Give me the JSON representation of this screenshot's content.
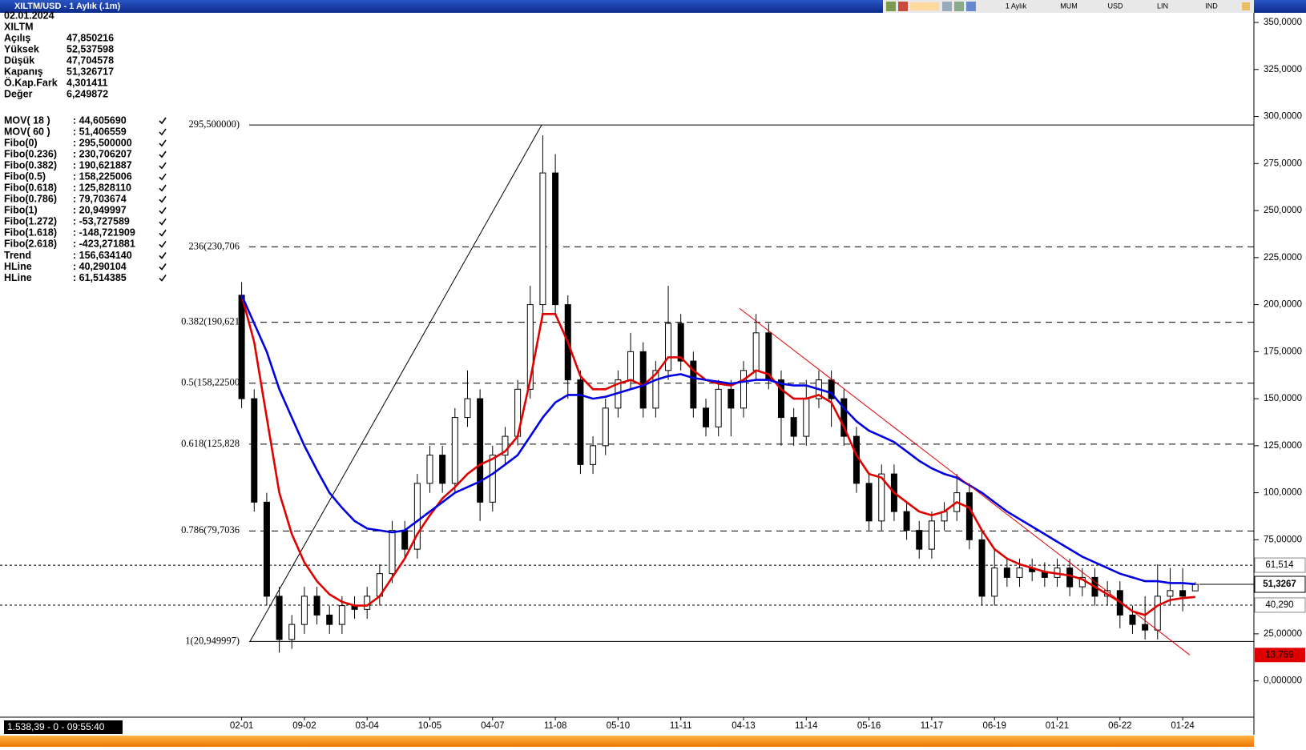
{
  "window": {
    "title": "XILTM/USD - 1 Aylık (.1m)",
    "toolbar": [
      "1 Aylık",
      "MUM",
      "USD",
      "LIN",
      "IND"
    ],
    "status": "1.538,39 - 0 - 09:55:40"
  },
  "info": {
    "date": "02.01.2024",
    "symbol": "XILTM",
    "rows": [
      [
        "Açılış",
        "47,850216"
      ],
      [
        "Yüksek",
        "52,537598"
      ],
      [
        "Düşük",
        "47,704578"
      ],
      [
        "Kapanış",
        "51,326717"
      ],
      [
        "Ö.Kap.Fark",
        "4,301411"
      ],
      [
        "Değer",
        "6,249872"
      ]
    ]
  },
  "chart_data": {
    "type": "candlestick",
    "categories": [
      "02-01",
      null,
      null,
      null,
      null,
      "09-02",
      null,
      null,
      null,
      null,
      "03-04",
      null,
      null,
      null,
      null,
      "10-05",
      null,
      null,
      null,
      null,
      "04-07",
      null,
      null,
      null,
      null,
      "11-08",
      null,
      null,
      null,
      null,
      "05-10",
      null,
      null,
      null,
      null,
      "11-11",
      null,
      null,
      null,
      null,
      "04-13",
      null,
      null,
      null,
      null,
      "11-14",
      null,
      null,
      null,
      null,
      "05-16",
      null,
      null,
      null,
      null,
      "11-17",
      null,
      null,
      null,
      null,
      "06-19",
      null,
      null,
      null,
      null,
      "01-21",
      null,
      null,
      null,
      null,
      "06-22",
      null,
      null,
      null,
      null,
      "01-24",
      null
    ],
    "open": [
      205,
      150,
      95,
      45,
      22,
      30,
      45,
      35,
      30,
      40,
      38,
      45,
      57,
      80,
      70,
      105,
      120,
      105,
      140,
      150,
      95,
      120,
      130,
      155,
      200,
      270,
      200,
      160,
      115,
      125,
      145,
      160,
      175,
      145,
      165,
      190,
      170,
      145,
      135,
      155,
      145,
      165,
      185,
      160,
      140,
      130,
      150,
      160,
      150,
      130,
      105,
      85,
      110,
      90,
      80,
      70,
      85,
      90,
      100,
      75,
      45,
      60,
      55,
      60,
      58,
      55,
      60,
      50,
      55,
      45,
      48,
      35,
      30,
      27,
      45,
      48,
      47.850216
    ],
    "high": [
      212,
      155,
      100,
      50,
      35,
      50,
      50,
      40,
      45,
      45,
      50,
      62,
      85,
      85,
      110,
      125,
      125,
      145,
      165,
      155,
      125,
      135,
      160,
      210,
      290,
      280,
      205,
      165,
      130,
      150,
      165,
      185,
      180,
      170,
      210,
      195,
      175,
      150,
      160,
      160,
      170,
      195,
      190,
      165,
      145,
      160,
      165,
      165,
      155,
      135,
      110,
      115,
      115,
      95,
      85,
      90,
      95,
      110,
      105,
      80,
      70,
      65,
      65,
      65,
      63,
      65,
      65,
      60,
      60,
      53,
      53,
      40,
      45,
      62,
      60,
      60,
      52.537598
    ],
    "low": [
      145,
      90,
      40,
      15,
      17,
      25,
      30,
      25,
      25,
      33,
      33,
      40,
      52,
      65,
      65,
      100,
      100,
      100,
      135,
      85,
      90,
      115,
      125,
      150,
      195,
      195,
      150,
      110,
      110,
      120,
      140,
      155,
      140,
      140,
      160,
      165,
      140,
      130,
      130,
      130,
      140,
      160,
      155,
      125,
      125,
      125,
      145,
      135,
      125,
      100,
      80,
      80,
      85,
      75,
      65,
      65,
      80,
      85,
      70,
      40,
      40,
      50,
      50,
      53,
      50,
      50,
      45,
      45,
      40,
      40,
      28,
      25,
      22,
      22,
      40,
      37,
      47.704578
    ],
    "close": [
      150,
      95,
      45,
      22,
      30,
      45,
      35,
      30,
      40,
      38,
      45,
      57,
      80,
      70,
      105,
      120,
      105,
      140,
      150,
      95,
      120,
      130,
      155,
      200,
      270,
      200,
      160,
      115,
      125,
      145,
      160,
      175,
      145,
      165,
      190,
      170,
      145,
      135,
      155,
      145,
      165,
      185,
      160,
      140,
      130,
      150,
      160,
      150,
      130,
      105,
      85,
      110,
      90,
      80,
      70,
      85,
      90,
      100,
      75,
      45,
      60,
      55,
      60,
      58,
      55,
      60,
      50,
      55,
      45,
      48,
      35,
      30,
      27,
      45,
      48,
      45,
      51.326717
    ],
    "last_label": "51,3267",
    "series": [
      {
        "name": "MOV( 18 )",
        "legend_value": ": 44,605690",
        "color": "#e00000",
        "values": [
          205,
          180,
          140,
          100,
          78,
          63,
          53,
          46,
          42,
          40,
          40,
          45,
          55,
          65,
          78,
          88,
          97,
          103,
          110,
          115,
          118,
          122,
          130,
          160,
          195,
          195,
          180,
          162,
          155,
          155,
          158,
          160,
          157,
          163,
          172,
          172,
          165,
          160,
          158,
          157,
          160,
          165,
          163,
          155,
          150,
          150,
          152,
          148,
          135,
          120,
          110,
          108,
          100,
          95,
          90,
          88,
          90,
          95,
          92,
          80,
          70,
          65,
          62,
          60,
          58,
          57,
          56,
          54,
          50,
          46,
          42,
          37,
          35,
          40,
          43,
          44,
          44.6
        ]
      },
      {
        "name": "MOV( 60 )",
        "legend_value": ": 51,406559",
        "color": "#0000e0",
        "values": [
          205,
          190,
          175,
          155,
          140,
          125,
          112,
          100,
          92,
          85,
          81,
          80,
          79,
          80,
          85,
          90,
          95,
          100,
          103,
          106,
          110,
          115,
          120,
          130,
          140,
          148,
          152,
          152,
          150,
          151,
          153,
          155,
          157,
          160,
          162,
          163,
          161,
          160,
          159,
          158,
          159,
          160,
          160,
          158,
          157,
          157,
          155,
          153,
          145,
          138,
          133,
          130,
          127,
          122,
          117,
          113,
          110,
          108,
          104,
          100,
          95,
          90,
          86,
          82,
          78,
          74,
          70,
          66,
          63,
          60,
          57,
          55,
          53,
          53,
          52,
          52,
          51.4
        ]
      }
    ],
    "fibo": [
      {
        "name": "Fibo(0)",
        "legend_value": ": 295,500000",
        "level": 295.5,
        "label": "295,500000)"
      },
      {
        "name": "Fibo(0.236)",
        "legend_value": ": 230,706207",
        "level": 230.706207,
        "label": "236(230,706"
      },
      {
        "name": "Fibo(0.382)",
        "legend_value": ": 190,621887",
        "level": 190.621887,
        "label": "0.382(190,621"
      },
      {
        "name": "Fibo(0.5)",
        "legend_value": ": 158,225006",
        "level": 158.225006,
        "label": "0.5(158,22500"
      },
      {
        "name": "Fibo(0.618)",
        "legend_value": ": 125,828110",
        "level": 125.82811,
        "label": "0.618(125,828"
      },
      {
        "name": "Fibo(0.786)",
        "legend_value": ": 79,703674",
        "level": 79.703674,
        "label": "0.786(79,7036"
      },
      {
        "name": "Fibo(1)",
        "legend_value": ": 20,949997",
        "level": 20.949997,
        "label": "1(20,949997)"
      },
      {
        "name": "Fibo(1.272)",
        "legend_value": ": -53,727589"
      },
      {
        "name": "Fibo(1.618)",
        "legend_value": ": -148,721909"
      },
      {
        "name": "Fibo(2.618)",
        "legend_value": ": -423,271881"
      }
    ],
    "trend": {
      "name": "Trend",
      "legend_value": ": 156,634140",
      "color": "#e00000",
      "start": 198,
      "end": 13.759,
      "end_label": "13,759"
    },
    "hlines": [
      {
        "name": "HLine",
        "legend_value": ": 40,290104",
        "value": 40.290104,
        "label": "40,290"
      },
      {
        "name": "HLine",
        "legend_value": ": 61,514385",
        "value": 61.514385,
        "label": "61,514"
      }
    ],
    "ylim": [
      -19.3,
      354.7
    ],
    "yticks": [
      {
        "value": 350,
        "label": "350,0000"
      },
      {
        "value": 325,
        "label": "325,0000"
      },
      {
        "value": 300,
        "label": "300,0000"
      },
      {
        "value": 275,
        "label": "275,0000"
      },
      {
        "value": 250,
        "label": "250,0000"
      },
      {
        "value": 225,
        "label": "225,0000"
      },
      {
        "value": 200,
        "label": "200,0000"
      },
      {
        "value": 175,
        "label": "175,0000"
      },
      {
        "value": 150,
        "label": "150,0000"
      },
      {
        "value": 125,
        "label": "125,0000"
      },
      {
        "value": 100,
        "label": "100,0000"
      },
      {
        "value": 75,
        "label": "75,00000"
      },
      {
        "value": 50,
        "label": "50,00000"
      },
      {
        "value": 25,
        "label": "25,00000"
      },
      {
        "value": 0,
        "label": "0,000000"
      }
    ],
    "up_color": "#ffffff",
    "down_color": "#000000"
  }
}
